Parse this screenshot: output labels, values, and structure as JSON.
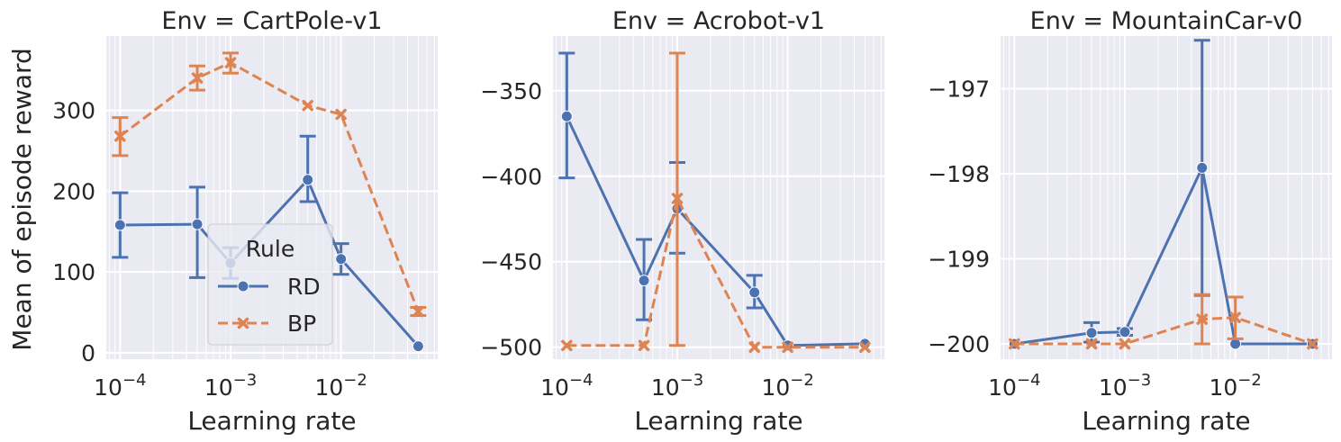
{
  "colors": {
    "RD": "#4c72b0",
    "BP": "#dd8452",
    "plot_bg": "#eaeaf2",
    "grid": "#ffffff"
  },
  "chart_data": [
    {
      "type": "line",
      "title": "Env = CartPole-v1",
      "xlabel": "Learning rate",
      "ylabel": "Mean of episode reward",
      "xscale": "log",
      "xlim": [
        7.5e-05,
        0.075
      ],
      "ylim": [
        -8,
        392
      ],
      "x_ticks": [
        {
          "v": 0.0001,
          "label": "10",
          "exp": "−4"
        },
        {
          "v": 0.001,
          "label": "10",
          "exp": "−3"
        },
        {
          "v": 0.01,
          "label": "10",
          "exp": "−2"
        }
      ],
      "y_ticks": [
        {
          "v": 0,
          "label": "0"
        },
        {
          "v": 100,
          "label": "100"
        },
        {
          "v": 200,
          "label": "200"
        },
        {
          "v": 300,
          "label": "300"
        }
      ],
      "legend": {
        "title": "Rule",
        "placement": "lower-center",
        "entries": [
          "RD",
          "BP"
        ]
      },
      "series": [
        {
          "name": "RD",
          "marker": "circle",
          "dash": "solid",
          "points": [
            {
              "x": 0.0001,
              "y": 158,
              "lo": 118,
              "hi": 198
            },
            {
              "x": 0.0005,
              "y": 159,
              "lo": 93,
              "hi": 205
            },
            {
              "x": 0.001,
              "y": 111,
              "lo": 92,
              "hi": 130
            },
            {
              "x": 0.005,
              "y": 214,
              "lo": 187,
              "hi": 268
            },
            {
              "x": 0.01,
              "y": 116,
              "lo": 97,
              "hi": 135
            },
            {
              "x": 0.05,
              "y": 8,
              "lo": 8,
              "hi": 8
            }
          ]
        },
        {
          "name": "BP",
          "marker": "x",
          "dash": "dashed",
          "points": [
            {
              "x": 0.0001,
              "y": 268,
              "lo": 244,
              "hi": 291
            },
            {
              "x": 0.0005,
              "y": 340,
              "lo": 325,
              "hi": 355
            },
            {
              "x": 0.001,
              "y": 359,
              "lo": 346,
              "hi": 371
            },
            {
              "x": 0.005,
              "y": 306,
              "lo": 306,
              "hi": 306
            },
            {
              "x": 0.01,
              "y": 295,
              "lo": 295,
              "hi": 295
            },
            {
              "x": 0.05,
              "y": 51,
              "lo": 46,
              "hi": 56
            }
          ]
        }
      ]
    },
    {
      "type": "line",
      "title": "Env = Acrobot-v1",
      "xlabel": "Learning rate",
      "ylabel": "",
      "xscale": "log",
      "xlim": [
        7.5e-05,
        0.075
      ],
      "ylim": [
        -507,
        -318
      ],
      "x_ticks": [
        {
          "v": 0.0001,
          "label": "10",
          "exp": "−4"
        },
        {
          "v": 0.001,
          "label": "10",
          "exp": "−3"
        },
        {
          "v": 0.01,
          "label": "10",
          "exp": "−2"
        }
      ],
      "y_ticks": [
        {
          "v": -500,
          "label": "−500"
        },
        {
          "v": -450,
          "label": "−450"
        },
        {
          "v": -400,
          "label": "−400"
        },
        {
          "v": -350,
          "label": "−350"
        }
      ],
      "series": [
        {
          "name": "RD",
          "marker": "circle",
          "dash": "solid",
          "points": [
            {
              "x": 0.0001,
              "y": -365,
              "lo": -401,
              "hi": -328
            },
            {
              "x": 0.0005,
              "y": -461,
              "lo": -484,
              "hi": -437
            },
            {
              "x": 0.001,
              "y": -419,
              "lo": -445,
              "hi": -392
            },
            {
              "x": 0.005,
              "y": -468,
              "lo": -477,
              "hi": -458
            },
            {
              "x": 0.01,
              "y": -499,
              "lo": -499,
              "hi": -499
            },
            {
              "x": 0.05,
              "y": -498,
              "lo": -498,
              "hi": -498
            }
          ]
        },
        {
          "name": "BP",
          "marker": "x",
          "dash": "dashed",
          "points": [
            {
              "x": 0.0001,
              "y": -499,
              "lo": -499,
              "hi": -499
            },
            {
              "x": 0.0005,
              "y": -499,
              "lo": -499,
              "hi": -499
            },
            {
              "x": 0.001,
              "y": -413,
              "lo": -499,
              "hi": -328
            },
            {
              "x": 0.005,
              "y": -500,
              "lo": -500,
              "hi": -500
            },
            {
              "x": 0.01,
              "y": -500,
              "lo": -500,
              "hi": -500
            },
            {
              "x": 0.05,
              "y": -500,
              "lo": -500,
              "hi": -500
            }
          ]
        }
      ]
    },
    {
      "type": "line",
      "title": "Env = MountainCar-v0",
      "xlabel": "Learning rate",
      "ylabel": "",
      "xscale": "log",
      "xlim": [
        7.5e-05,
        0.075
      ],
      "ylim": [
        -200.18,
        -196.38
      ],
      "x_ticks": [
        {
          "v": 0.0001,
          "label": "10",
          "exp": "−4"
        },
        {
          "v": 0.001,
          "label": "10",
          "exp": "−3"
        },
        {
          "v": 0.01,
          "label": "10",
          "exp": "−2"
        }
      ],
      "y_ticks": [
        {
          "v": -200,
          "label": "−200"
        },
        {
          "v": -199,
          "label": "−199"
        },
        {
          "v": -198,
          "label": "−198"
        },
        {
          "v": -197,
          "label": "−197"
        }
      ],
      "series": [
        {
          "name": "RD",
          "marker": "circle",
          "dash": "solid",
          "points": [
            {
              "x": 0.0001,
              "y": -200.0,
              "lo": -200.0,
              "hi": -200.0
            },
            {
              "x": 0.0005,
              "y": -199.87,
              "lo": -199.98,
              "hi": -199.75
            },
            {
              "x": 0.001,
              "y": -199.86,
              "lo": -199.9,
              "hi": -199.82
            },
            {
              "x": 0.005,
              "y": -197.93,
              "lo": -199.43,
              "hi": -196.43
            },
            {
              "x": 0.01,
              "y": -200.0,
              "lo": -200.0,
              "hi": -200.0
            },
            {
              "x": 0.05,
              "y": -200.0,
              "lo": -200.0,
              "hi": -200.0
            }
          ]
        },
        {
          "name": "BP",
          "marker": "x",
          "dash": "dashed",
          "points": [
            {
              "x": 0.0001,
              "y": -200.0,
              "lo": -200.0,
              "hi": -200.0
            },
            {
              "x": 0.0005,
              "y": -200.0,
              "lo": -200.0,
              "hi": -200.0
            },
            {
              "x": 0.001,
              "y": -200.0,
              "lo": -200.0,
              "hi": -200.0
            },
            {
              "x": 0.005,
              "y": -199.71,
              "lo": -200.0,
              "hi": -199.42
            },
            {
              "x": 0.01,
              "y": -199.69,
              "lo": -199.94,
              "hi": -199.45
            },
            {
              "x": 0.05,
              "y": -200.0,
              "lo": -200.0,
              "hi": -200.0
            }
          ]
        }
      ]
    }
  ]
}
